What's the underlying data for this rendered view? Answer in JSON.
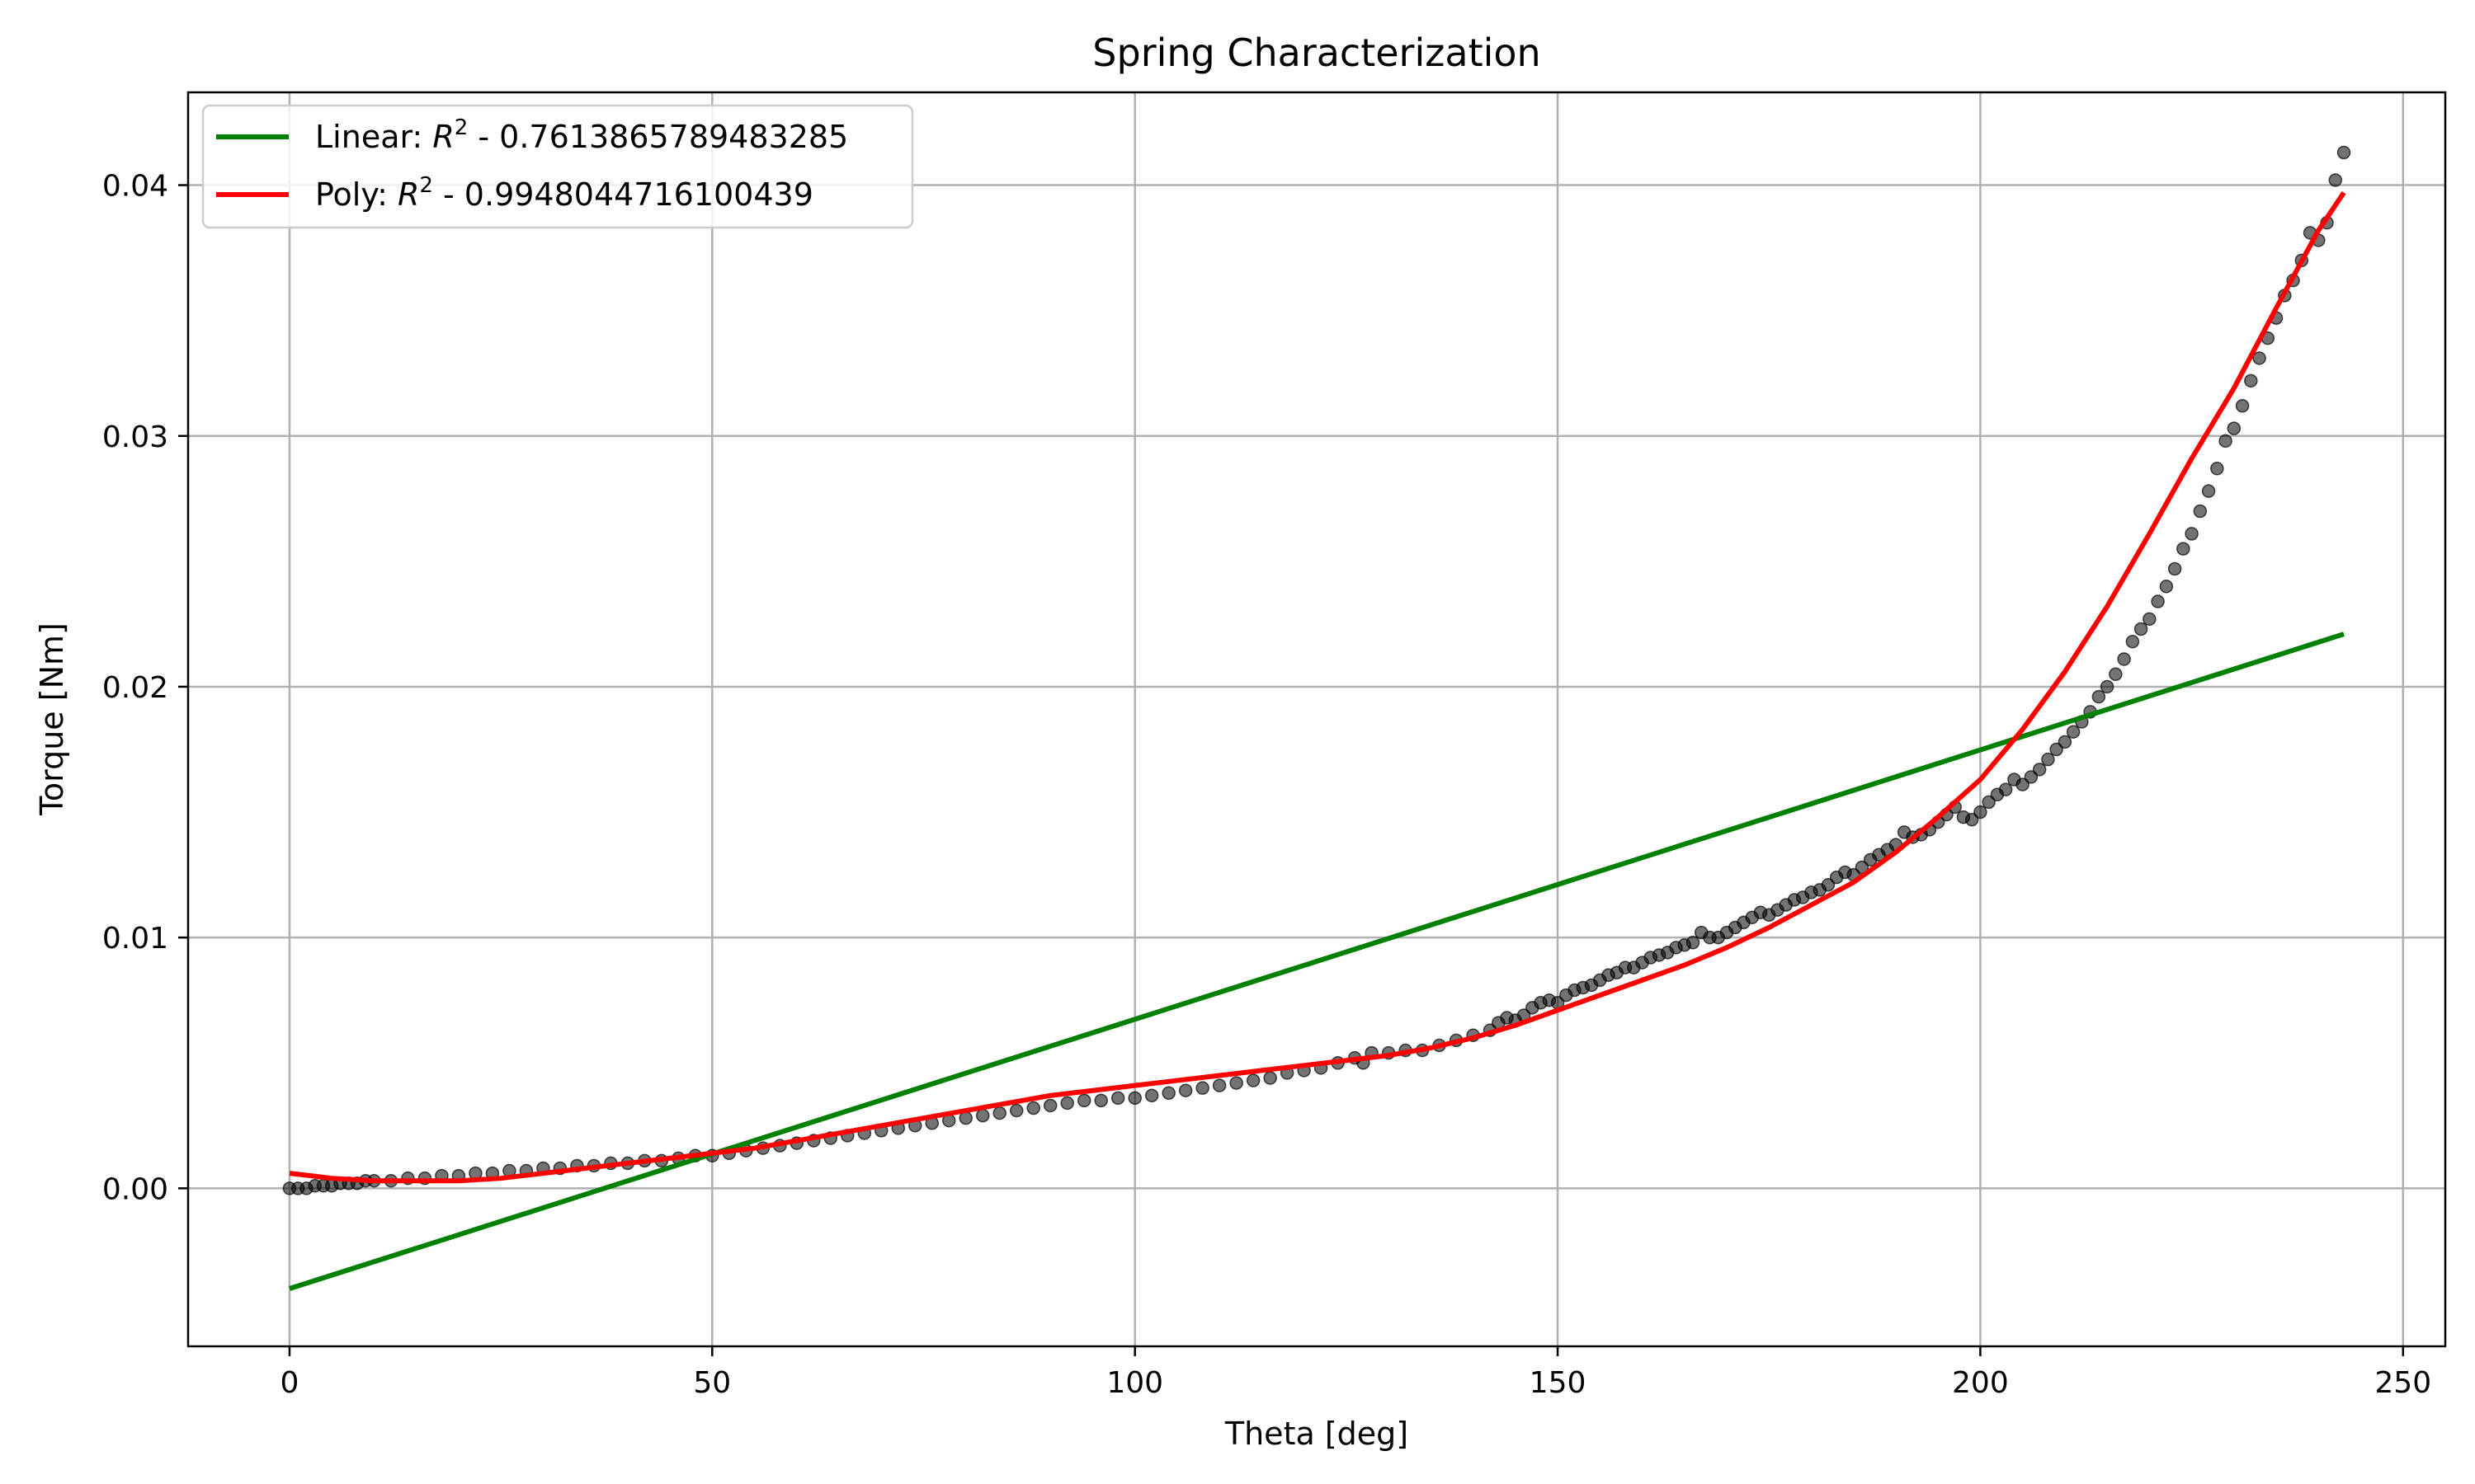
{
  "chart_data": {
    "type": "scatter",
    "title": "Spring Characterization",
    "xlabel": "Theta [deg]",
    "ylabel": "Torque [Nm]",
    "xlim": [
      -12,
      255
    ],
    "ylim": [
      -0.0063,
      0.0437
    ],
    "xticks": [
      0,
      50,
      100,
      150,
      200,
      250
    ],
    "xtick_labels": [
      "0",
      "50",
      "100",
      "150",
      "200",
      "250"
    ],
    "yticks": [
      0.0,
      0.01,
      0.02,
      0.03,
      0.04
    ],
    "ytick_labels": [
      "0.00",
      "0.01",
      "0.02",
      "0.03",
      "0.04"
    ],
    "grid": true,
    "legend_position": "top-left",
    "legend": [
      {
        "prefix": "Linear: ",
        "symbol": "R",
        "sup": "2",
        "suffix": " - 0.7613865789483285",
        "color": "#008000"
      },
      {
        "prefix": "Poly: ",
        "symbol": "R",
        "sup": "2",
        "suffix": " - 0.9948044716100439",
        "color": "#ff0000"
      }
    ],
    "measurements": {
      "color": "#000000",
      "opacity": 0.55,
      "points": [
        [
          0,
          0.0
        ],
        [
          1,
          0.0
        ],
        [
          2,
          0.0
        ],
        [
          3,
          0.0001
        ],
        [
          4,
          0.0001
        ],
        [
          5,
          0.0001
        ],
        [
          6,
          0.0002
        ],
        [
          7,
          0.0002
        ],
        [
          8,
          0.0002
        ],
        [
          9,
          0.0003
        ],
        [
          10,
          0.0003
        ],
        [
          12,
          0.0003
        ],
        [
          14,
          0.0004
        ],
        [
          16,
          0.0004
        ],
        [
          18,
          0.0005
        ],
        [
          20,
          0.0005
        ],
        [
          22,
          0.0006
        ],
        [
          24,
          0.0006
        ],
        [
          26,
          0.0007
        ],
        [
          28,
          0.0007
        ],
        [
          30,
          0.0008
        ],
        [
          32,
          0.0008
        ],
        [
          34,
          0.0009
        ],
        [
          36,
          0.0009
        ],
        [
          38,
          0.001
        ],
        [
          40,
          0.001
        ],
        [
          42,
          0.0011
        ],
        [
          44,
          0.0011
        ],
        [
          46,
          0.0012
        ],
        [
          48,
          0.0013
        ],
        [
          50,
          0.0013
        ],
        [
          52,
          0.0014
        ],
        [
          54,
          0.0015
        ],
        [
          56,
          0.0016
        ],
        [
          58,
          0.0017
        ],
        [
          60,
          0.0018
        ],
        [
          62,
          0.0019
        ],
        [
          64,
          0.002
        ],
        [
          66,
          0.0021
        ],
        [
          68,
          0.0022
        ],
        [
          70,
          0.0023
        ],
        [
          72,
          0.0024
        ],
        [
          74,
          0.0025
        ],
        [
          76,
          0.0026
        ],
        [
          78,
          0.0027
        ],
        [
          80,
          0.0028
        ],
        [
          82,
          0.0029
        ],
        [
          84,
          0.003
        ],
        [
          86,
          0.0031
        ],
        [
          88,
          0.0032
        ],
        [
          90,
          0.0033
        ],
        [
          92,
          0.0034
        ],
        [
          94,
          0.0035
        ],
        [
          96,
          0.0035
        ],
        [
          98,
          0.0036
        ],
        [
          100,
          0.0036
        ],
        [
          102,
          0.0037
        ],
        [
          104,
          0.0038
        ],
        [
          106,
          0.0039
        ],
        [
          108,
          0.004
        ],
        [
          110,
          0.0041
        ],
        [
          112,
          0.0042
        ],
        [
          114,
          0.0043
        ],
        [
          116,
          0.0044
        ],
        [
          118,
          0.0046
        ],
        [
          120,
          0.0047
        ],
        [
          122,
          0.0048
        ],
        [
          124,
          0.005
        ],
        [
          126,
          0.0052
        ],
        [
          127,
          0.005
        ],
        [
          128,
          0.0054
        ],
        [
          130,
          0.0054
        ],
        [
          132,
          0.0055
        ],
        [
          134,
          0.0055
        ],
        [
          136,
          0.0057
        ],
        [
          138,
          0.0059
        ],
        [
          140,
          0.0061
        ],
        [
          142,
          0.0063
        ],
        [
          143,
          0.0066
        ],
        [
          144,
          0.0068
        ],
        [
          145,
          0.0067
        ],
        [
          146,
          0.0069
        ],
        [
          147,
          0.0072
        ],
        [
          148,
          0.0074
        ],
        [
          149,
          0.0075
        ],
        [
          150,
          0.0074
        ],
        [
          151,
          0.0077
        ],
        [
          152,
          0.0079
        ],
        [
          153,
          0.008
        ],
        [
          154,
          0.0081
        ],
        [
          155,
          0.0083
        ],
        [
          156,
          0.0085
        ],
        [
          157,
          0.0086
        ],
        [
          158,
          0.0088
        ],
        [
          159,
          0.0088
        ],
        [
          160,
          0.009
        ],
        [
          161,
          0.0092
        ],
        [
          162,
          0.0093
        ],
        [
          163,
          0.0094
        ],
        [
          164,
          0.0096
        ],
        [
          165,
          0.0097
        ],
        [
          166,
          0.0098
        ],
        [
          167,
          0.0102
        ],
        [
          168,
          0.01
        ],
        [
          169,
          0.01
        ],
        [
          170,
          0.0102
        ],
        [
          171,
          0.0104
        ],
        [
          172,
          0.0106
        ],
        [
          173,
          0.0108
        ],
        [
          174,
          0.011
        ],
        [
          175,
          0.0109
        ],
        [
          176,
          0.0111
        ],
        [
          177,
          0.0113
        ],
        [
          178,
          0.0115
        ],
        [
          179,
          0.0116
        ],
        [
          180,
          0.0118
        ],
        [
          181,
          0.0119
        ],
        [
          182,
          0.0121
        ],
        [
          183,
          0.0124
        ],
        [
          184,
          0.0126
        ],
        [
          185,
          0.0125
        ],
        [
          186,
          0.0128
        ],
        [
          187,
          0.0131
        ],
        [
          188,
          0.0133
        ],
        [
          189,
          0.0135
        ],
        [
          190,
          0.0137
        ],
        [
          191,
          0.0142
        ],
        [
          192,
          0.014
        ],
        [
          193,
          0.0141
        ],
        [
          194,
          0.0143
        ],
        [
          195,
          0.0146
        ],
        [
          196,
          0.0149
        ],
        [
          197,
          0.0152
        ],
        [
          198,
          0.0148
        ],
        [
          199,
          0.0147
        ],
        [
          200,
          0.015
        ],
        [
          201,
          0.0154
        ],
        [
          202,
          0.0157
        ],
        [
          203,
          0.0159
        ],
        [
          204,
          0.0163
        ],
        [
          205,
          0.0161
        ],
        [
          206,
          0.0164
        ],
        [
          207,
          0.0167
        ],
        [
          208,
          0.0171
        ],
        [
          209,
          0.0175
        ],
        [
          210,
          0.0178
        ],
        [
          211,
          0.0182
        ],
        [
          212,
          0.0186
        ],
        [
          213,
          0.019
        ],
        [
          214,
          0.0196
        ],
        [
          215,
          0.02
        ],
        [
          216,
          0.0205
        ],
        [
          217,
          0.0211
        ],
        [
          218,
          0.0218
        ],
        [
          219,
          0.0223
        ],
        [
          220,
          0.0227
        ],
        [
          221,
          0.0234
        ],
        [
          222,
          0.024
        ],
        [
          223,
          0.0247
        ],
        [
          224,
          0.0255
        ],
        [
          225,
          0.0261
        ],
        [
          226,
          0.027
        ],
        [
          227,
          0.0278
        ],
        [
          228,
          0.0287
        ],
        [
          229,
          0.0298
        ],
        [
          230,
          0.0303
        ],
        [
          231,
          0.0312
        ],
        [
          232,
          0.0322
        ],
        [
          233,
          0.0331
        ],
        [
          234,
          0.0339
        ],
        [
          235,
          0.0347
        ],
        [
          236,
          0.0356
        ],
        [
          237,
          0.0362
        ],
        [
          238,
          0.037
        ],
        [
          239,
          0.0381
        ],
        [
          240,
          0.0378
        ],
        [
          241,
          0.0385
        ],
        [
          242,
          0.0402
        ],
        [
          243,
          0.0413
        ]
      ]
    },
    "linear_fit": {
      "x": [
        0,
        243
      ],
      "y": [
        -0.004,
        0.0221
      ],
      "color": "#008000"
    },
    "poly_fit": {
      "color": "#ff0000",
      "x": [
        0,
        5,
        10,
        15,
        20,
        25,
        30,
        35,
        40,
        45,
        50,
        55,
        60,
        65,
        70,
        75,
        80,
        85,
        90,
        95,
        100,
        105,
        110,
        115,
        120,
        125,
        130,
        135,
        140,
        145,
        150,
        155,
        160,
        165,
        170,
        175,
        180,
        185,
        190,
        195,
        200,
        205,
        210,
        215,
        220,
        225,
        230,
        235,
        240,
        243
      ],
      "y": [
        0.0006,
        0.0004,
        0.0003,
        0.0003,
        0.0003,
        0.0004,
        0.0006,
        0.0008,
        0.001,
        0.0012,
        0.0014,
        0.0016,
        0.0019,
        0.0022,
        0.0025,
        0.0028,
        0.0031,
        0.0034,
        0.0037,
        0.0039,
        0.0041,
        0.0043,
        0.0045,
        0.0047,
        0.0049,
        0.0051,
        0.0053,
        0.0056,
        0.006,
        0.0065,
        0.0071,
        0.0077,
        0.0083,
        0.0089,
        0.0096,
        0.0104,
        0.0113,
        0.0122,
        0.0134,
        0.0148,
        0.0163,
        0.0183,
        0.0206,
        0.0232,
        0.0261,
        0.0291,
        0.0319,
        0.0351,
        0.0382,
        0.0397
      ]
    }
  }
}
